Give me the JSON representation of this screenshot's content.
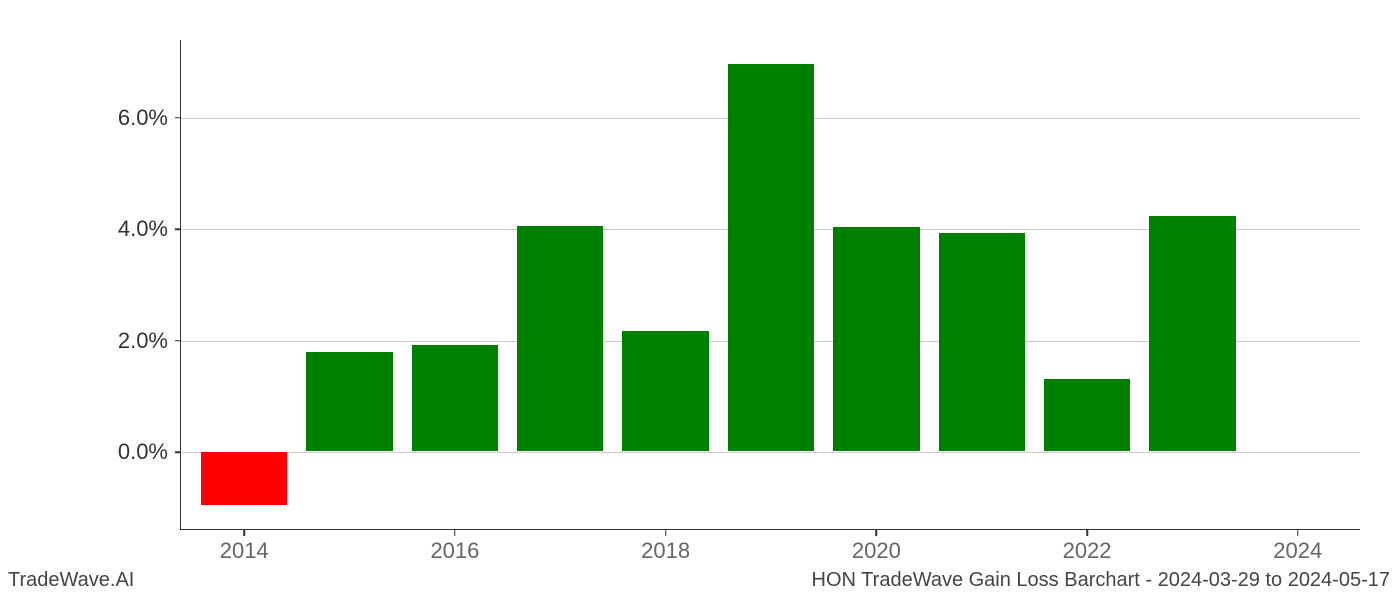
{
  "chart": {
    "type": "bar",
    "years": [
      2014,
      2015,
      2016,
      2017,
      2018,
      2019,
      2020,
      2021,
      2022,
      2023
    ],
    "values": [
      -0.95,
      1.78,
      1.9,
      4.05,
      2.15,
      6.95,
      4.02,
      3.92,
      1.3,
      4.22
    ],
    "positive_color": "#008000",
    "negative_color": "#ff0000",
    "background_color": "#ffffff",
    "grid_color": "#cccccc",
    "axis_color": "#333333",
    "y_ticks": [
      0.0,
      2.0,
      4.0,
      6.0
    ],
    "y_tick_labels": [
      "0.0%",
      "2.0%",
      "4.0%",
      "6.0%"
    ],
    "y_min": -1.4,
    "y_max": 7.4,
    "x_min": 2013.4,
    "x_max": 2024.6,
    "x_tick_values": [
      2014,
      2016,
      2018,
      2020,
      2022,
      2024
    ],
    "x_tick_labels": [
      "2014",
      "2016",
      "2018",
      "2020",
      "2022",
      "2024"
    ],
    "bar_width_years": 0.82,
    "y_label_fontsize": 22,
    "x_label_fontsize": 22,
    "x_label_color": "#666666"
  },
  "footer": {
    "left": "TradeWave.AI",
    "right": "HON TradeWave Gain Loss Barchart - 2024-03-29 to 2024-05-17"
  }
}
